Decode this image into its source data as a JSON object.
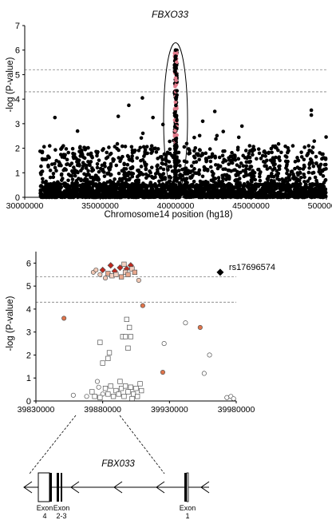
{
  "chart_data": [
    {
      "type": "scatter",
      "title": "FBXO33",
      "xlabel": "Chromosome14 position (hg18)",
      "ylabel": "-log (P-value)",
      "xlim": [
        30000000,
        50000000
      ],
      "ylim": [
        0,
        7
      ],
      "x_ticks": [
        "30000000",
        "35000000",
        "40000000",
        "45000000",
        "50000000"
      ],
      "y_ticks": [
        "0",
        "1",
        "2",
        "3",
        "4",
        "5",
        "6",
        "7"
      ],
      "threshold_lines": [
        5.2,
        4.3
      ],
      "highlight_region": {
        "x_center": 40000000,
        "y_range": [
          0,
          6.3
        ]
      },
      "notable_points": [
        {
          "x": 32000000,
          "y": 3.25
        },
        {
          "x": 33500000,
          "y": 2.7
        },
        {
          "x": 36200000,
          "y": 3.3
        },
        {
          "x": 36900000,
          "y": 3.75
        },
        {
          "x": 37800000,
          "y": 4.05
        },
        {
          "x": 38500000,
          "y": 3.25
        },
        {
          "x": 40000000,
          "y": 6.0
        },
        {
          "x": 40000000,
          "y": 5.75
        },
        {
          "x": 41800000,
          "y": 3.1
        },
        {
          "x": 42600000,
          "y": 3.5
        },
        {
          "x": 44400000,
          "y": 2.9
        },
        {
          "x": 49000000,
          "y": 3.55
        },
        {
          "x": 49000000,
          "y": 3.35
        }
      ]
    },
    {
      "type": "scatter",
      "xlabel": "",
      "ylabel": "-log (P-value)",
      "xlim": [
        39830000,
        39980000
      ],
      "ylim": [
        0,
        6.5
      ],
      "x_ticks": [
        "39830000",
        "39880000",
        "39930000",
        "39980000"
      ],
      "y_ticks": [
        "0",
        "1",
        "2",
        "3",
        "4",
        "5",
        "6"
      ],
      "threshold_lines": [
        5.4,
        4.3
      ],
      "annotation": "rs17696574",
      "lead_snp": {
        "x": 39968000,
        "y": 5.6
      },
      "points": [
        {
          "x": 39851000,
          "y": 3.6,
          "shape": "circle",
          "color": "#e0744a"
        },
        {
          "x": 39858000,
          "y": 0.25,
          "shape": "circle",
          "color": "#ffffff"
        },
        {
          "x": 39868000,
          "y": 0.2,
          "shape": "circle",
          "color": "#ffffff"
        },
        {
          "x": 39873000,
          "y": 5.6,
          "shape": "circle",
          "color": "#f2c9b5"
        },
        {
          "x": 39875000,
          "y": 5.7,
          "shape": "circle",
          "color": "#f2c9b5"
        },
        {
          "x": 39878000,
          "y": 5.5,
          "shape": "circle",
          "color": "#f2c9b5"
        },
        {
          "x": 39882000,
          "y": 5.35,
          "shape": "circle",
          "color": "#f2c9b5"
        },
        {
          "x": 39877000,
          "y": 0.6,
          "shape": "circle",
          "color": "#ffffff"
        },
        {
          "x": 39880000,
          "y": 0.3,
          "shape": "circle",
          "color": "#ffffff"
        },
        {
          "x": 39876000,
          "y": 0.85,
          "shape": "circle",
          "color": "#ffffff"
        },
        {
          "x": 39907000,
          "y": 5.25,
          "shape": "circle",
          "color": "#f2c9b5"
        },
        {
          "x": 39910000,
          "y": 4.15,
          "shape": "circle",
          "color": "#e0744a"
        },
        {
          "x": 39925000,
          "y": 1.25,
          "shape": "circle",
          "color": "#e0744a"
        },
        {
          "x": 39926000,
          "y": 2.5,
          "shape": "circle",
          "color": "#ffffff"
        },
        {
          "x": 39942000,
          "y": 3.4,
          "shape": "circle",
          "color": "#ffffff"
        },
        {
          "x": 39953000,
          "y": 3.2,
          "shape": "circle",
          "color": "#e0744a"
        },
        {
          "x": 39956000,
          "y": 1.2,
          "shape": "circle",
          "color": "#ffffff"
        },
        {
          "x": 39960000,
          "y": 2.0,
          "shape": "circle",
          "color": "#ffffff"
        },
        {
          "x": 39973000,
          "y": 0.15,
          "shape": "circle",
          "color": "#ffffff"
        },
        {
          "x": 39976000,
          "y": 0.2,
          "shape": "circle",
          "color": "#ffffff"
        },
        {
          "x": 39978000,
          "y": 0.1,
          "shape": "circle",
          "color": "#ffffff"
        },
        {
          "x": 39886000,
          "y": 5.9,
          "shape": "diamond",
          "color": "#c0281e"
        },
        {
          "x": 39889000,
          "y": 5.65,
          "shape": "diamond",
          "color": "#c0281e"
        },
        {
          "x": 39893000,
          "y": 5.8,
          "shape": "diamond",
          "color": "#c0281e"
        },
        {
          "x": 39898000,
          "y": 5.75,
          "shape": "diamond",
          "color": "#c0281e"
        },
        {
          "x": 39901000,
          "y": 5.9,
          "shape": "diamond",
          "color": "#c0281e"
        },
        {
          "x": 39880000,
          "y": 5.7,
          "shape": "diamond",
          "color": "#c0281e"
        },
        {
          "x": 39884000,
          "y": 5.55,
          "shape": "square",
          "color": "#e9a98e"
        },
        {
          "x": 39887000,
          "y": 5.45,
          "shape": "square",
          "color": "#f4d1c2"
        },
        {
          "x": 39890000,
          "y": 5.5,
          "shape": "square",
          "color": "#f4d1c2"
        },
        {
          "x": 39894000,
          "y": 5.4,
          "shape": "square",
          "color": "#e9a98e"
        },
        {
          "x": 39897000,
          "y": 5.6,
          "shape": "square",
          "color": "#f4d1c2"
        },
        {
          "x": 39899000,
          "y": 5.5,
          "shape": "square",
          "color": "#e9a98e"
        },
        {
          "x": 39902000,
          "y": 5.75,
          "shape": "square",
          "color": "#f4d1c2"
        },
        {
          "x": 39904000,
          "y": 5.6,
          "shape": "square",
          "color": "#e9a98e"
        },
        {
          "x": 39896000,
          "y": 5.95,
          "shape": "square",
          "color": "#f4d1c2"
        },
        {
          "x": 39878000,
          "y": 2.55,
          "shape": "square",
          "color": "#ffffff"
        },
        {
          "x": 39880000,
          "y": 1.65,
          "shape": "square",
          "color": "#ffffff"
        },
        {
          "x": 39884000,
          "y": 1.85,
          "shape": "square",
          "color": "#ffffff"
        },
        {
          "x": 39885000,
          "y": 2.1,
          "shape": "square",
          "color": "#ffffff"
        },
        {
          "x": 39898000,
          "y": 3.55,
          "shape": "square",
          "color": "#ffffff"
        },
        {
          "x": 39900000,
          "y": 3.2,
          "shape": "square",
          "color": "#ffffff"
        },
        {
          "x": 39895000,
          "y": 2.8,
          "shape": "square",
          "color": "#ffffff"
        },
        {
          "x": 39897000,
          "y": 2.8,
          "shape": "square",
          "color": "#ffffff"
        },
        {
          "x": 39901000,
          "y": 2.8,
          "shape": "square",
          "color": "#ffffff"
        },
        {
          "x": 39899000,
          "y": 2.3,
          "shape": "square",
          "color": "#ffffff"
        },
        {
          "x": 39872000,
          "y": 0.4,
          "shape": "square",
          "color": "#ffffff"
        },
        {
          "x": 39874000,
          "y": 0.2,
          "shape": "square",
          "color": "#ffffff"
        },
        {
          "x": 39878000,
          "y": 0.15,
          "shape": "square",
          "color": "#ffffff"
        },
        {
          "x": 39882000,
          "y": 0.55,
          "shape": "square",
          "color": "#ffffff"
        },
        {
          "x": 39884000,
          "y": 0.3,
          "shape": "square",
          "color": "#ffffff"
        },
        {
          "x": 39886000,
          "y": 0.65,
          "shape": "square",
          "color": "#ffffff"
        },
        {
          "x": 39888000,
          "y": 0.2,
          "shape": "square",
          "color": "#ffffff"
        },
        {
          "x": 39890000,
          "y": 0.45,
          "shape": "square",
          "color": "#ffffff"
        },
        {
          "x": 39892000,
          "y": 0.3,
          "shape": "square",
          "color": "#ffffff"
        },
        {
          "x": 39894000,
          "y": 0.55,
          "shape": "square",
          "color": "#ffffff"
        },
        {
          "x": 39896000,
          "y": 0.2,
          "shape": "square",
          "color": "#ffffff"
        },
        {
          "x": 39897000,
          "y": 0.65,
          "shape": "square",
          "color": "#ffffff"
        },
        {
          "x": 39899000,
          "y": 0.4,
          "shape": "square",
          "color": "#ffffff"
        },
        {
          "x": 39901000,
          "y": 0.6,
          "shape": "square",
          "color": "#ffffff"
        },
        {
          "x": 39903000,
          "y": 0.3,
          "shape": "square",
          "color": "#ffffff"
        },
        {
          "x": 39905000,
          "y": 0.55,
          "shape": "square",
          "color": "#ffffff"
        },
        {
          "x": 39906000,
          "y": 0.2,
          "shape": "square",
          "color": "#ffffff"
        },
        {
          "x": 39908000,
          "y": 0.75,
          "shape": "square",
          "color": "#ffffff"
        },
        {
          "x": 39909000,
          "y": 0.45,
          "shape": "square",
          "color": "#ffffff"
        },
        {
          "x": 39893000,
          "y": 0.85,
          "shape": "square",
          "color": "#ffffff"
        },
        {
          "x": 39902000,
          "y": 0.1,
          "shape": "square",
          "color": "#ffffff"
        }
      ]
    }
  ],
  "gene_diagram": {
    "gene_label": "FBX033",
    "exons": [
      {
        "line1": "Exon",
        "line2": "4"
      },
      {
        "line1": "Exon",
        "line2": "2-3"
      },
      {
        "line1": "Exon",
        "line2": "1"
      }
    ]
  },
  "colors": {
    "manhattan_point": "#000000",
    "highlight_point": "#e07a8a",
    "grid": "#808080"
  }
}
